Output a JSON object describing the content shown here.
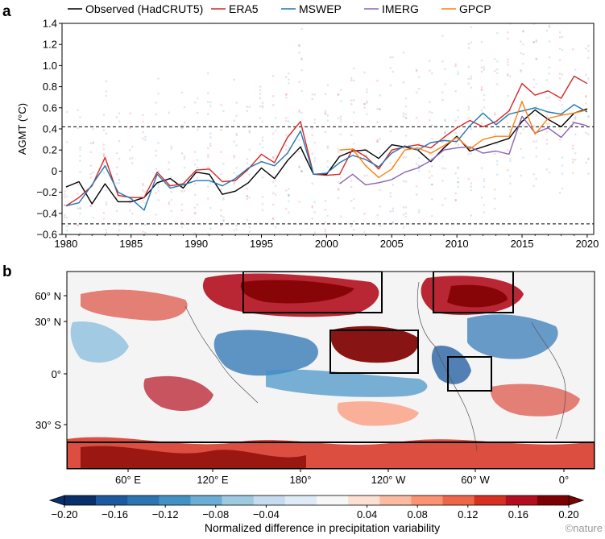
{
  "panel_a": {
    "letter": "a",
    "ylabel": "AGMT (°C)",
    "yticks": [
      "−0.6",
      "−0.4",
      "−0.2",
      "0",
      "0.2",
      "0.4",
      "0.6",
      "0.8",
      "1.0",
      "1.2",
      "1.4"
    ],
    "xticks": [
      "1980",
      "1985",
      "1990",
      "1995",
      "2000",
      "2005",
      "2010",
      "2015",
      "2020"
    ]
  },
  "panel_b": {
    "letter": "b",
    "lat_ticks": [
      "60° N",
      "30° N",
      "0°",
      "30° S"
    ],
    "lon_ticks": [
      "60° E",
      "120° E",
      "180°",
      "120° W",
      "60° W",
      "0°"
    ],
    "colorbar_ticks": [
      "−0.20",
      "−0.16",
      "−0.12",
      "−0.08",
      "−0.04",
      "0.04",
      "0.08",
      "0.12",
      "0.16",
      "0.20"
    ],
    "colorbar_label": "Normalized difference in precipitation variability",
    "colorbar_range": [
      -0.2,
      0.2
    ],
    "colorbar_colors": [
      "#08306b",
      "#1c5a9f",
      "#2c74b4",
      "#4292c6",
      "#6aaed6",
      "#9ecae1",
      "#c6dbef",
      "#deebf7",
      "#f7f7f7",
      "#fde0d2",
      "#fcbba1",
      "#fc9272",
      "#ef6548",
      "#d7301f",
      "#b30f1f",
      "#7f0000"
    ],
    "boxed_regions": [
      "north-pacific",
      "north-atlantic",
      "central-pacific",
      "amazon",
      "southern-ocean"
    ]
  },
  "credit": "©nature",
  "chart_data": {
    "type": "line",
    "x": [
      1980,
      1981,
      1982,
      1983,
      1984,
      1985,
      1986,
      1987,
      1988,
      1989,
      1990,
      1991,
      1992,
      1993,
      1994,
      1995,
      1996,
      1997,
      1998,
      1999,
      2000,
      2001,
      2002,
      2003,
      2004,
      2005,
      2006,
      2007,
      2008,
      2009,
      2010,
      2011,
      2012,
      2013,
      2014,
      2015,
      2016,
      2017,
      2018,
      2019,
      2020
    ],
    "ylim": [
      -0.6,
      1.4
    ],
    "xlim": [
      1979.7,
      2020.5
    ],
    "legend_position": "top",
    "reference_lines": [
      0.42,
      -0.5
    ],
    "series": [
      {
        "name": "Observed (HadCRUT5)",
        "color": "#000000",
        "values": [
          -0.15,
          -0.1,
          -0.31,
          -0.12,
          -0.29,
          -0.29,
          -0.25,
          -0.11,
          -0.07,
          -0.16,
          -0.01,
          -0.03,
          -0.22,
          -0.19,
          -0.11,
          0.03,
          -0.07,
          0.1,
          0.23,
          -0.03,
          -0.03,
          0.14,
          0.19,
          0.2,
          0.12,
          0.25,
          0.23,
          0.2,
          0.09,
          0.22,
          0.33,
          0.19,
          0.23,
          0.27,
          0.31,
          0.47,
          0.58,
          0.49,
          0.42,
          0.55,
          0.59
        ]
      },
      {
        "name": "ERA5",
        "color": "#d62728",
        "values": [
          -0.33,
          -0.25,
          -0.14,
          0.13,
          -0.23,
          -0.25,
          -0.25,
          -0.01,
          -0.14,
          -0.12,
          0.01,
          0.02,
          -0.1,
          -0.09,
          0.02,
          0.16,
          0.08,
          0.32,
          0.47,
          -0.03,
          -0.04,
          -0.03,
          0.21,
          0.14,
          0.02,
          0.2,
          0.23,
          0.25,
          0.22,
          0.32,
          0.41,
          0.48,
          0.42,
          0.47,
          0.57,
          0.83,
          0.72,
          0.76,
          0.69,
          0.9,
          0.83
        ]
      },
      {
        "name": "MSWEP",
        "color": "#1f77b4",
        "values": [
          -0.33,
          -0.3,
          -0.13,
          0.05,
          -0.2,
          -0.26,
          -0.37,
          -0.03,
          -0.16,
          -0.13,
          -0.09,
          -0.09,
          -0.14,
          -0.07,
          0.03,
          0.09,
          0.05,
          0.17,
          0.38,
          -0.03,
          -0.02,
          0.08,
          0.15,
          0.11,
          0.04,
          0.17,
          0.24,
          0.2,
          0.27,
          0.29,
          0.28,
          0.43,
          0.55,
          0.44,
          0.54,
          0.57,
          0.6,
          0.56,
          0.54,
          0.63,
          0.56
        ]
      },
      {
        "name": "IMERG",
        "color": "#8c62b8",
        "values": [
          null,
          null,
          null,
          null,
          null,
          null,
          null,
          null,
          null,
          null,
          null,
          null,
          null,
          null,
          null,
          null,
          null,
          null,
          null,
          null,
          null,
          -0.12,
          -0.03,
          -0.13,
          -0.11,
          -0.08,
          -0.01,
          0.03,
          0.1,
          0.2,
          0.22,
          0.23,
          0.17,
          0.19,
          0.16,
          0.52,
          0.36,
          0.41,
          0.32,
          0.46,
          0.43
        ]
      },
      {
        "name": "GPCP",
        "color": "#ff7f0e",
        "values": [
          null,
          null,
          null,
          null,
          null,
          null,
          null,
          null,
          null,
          null,
          null,
          null,
          null,
          null,
          null,
          null,
          null,
          null,
          null,
          null,
          null,
          0.2,
          0.21,
          0.05,
          -0.06,
          0.02,
          0.2,
          0.22,
          0.17,
          0.24,
          0.32,
          0.21,
          0.3,
          0.33,
          0.33,
          0.66,
          0.35,
          0.5,
          0.53,
          0.55,
          0.58
        ]
      }
    ]
  }
}
